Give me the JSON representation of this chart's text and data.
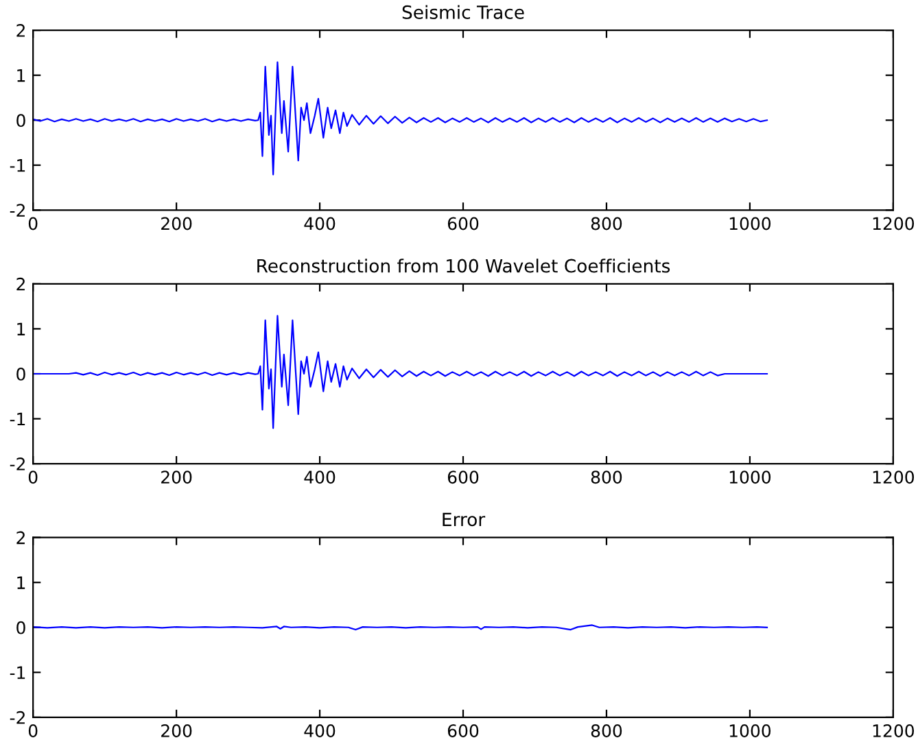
{
  "chart_data": [
    {
      "type": "line",
      "title": "Seismic Trace",
      "xlim": [
        0,
        1200
      ],
      "ylim": [
        -2,
        2
      ],
      "xticks": [
        0,
        200,
        400,
        600,
        800,
        1000,
        1200
      ],
      "yticks": [
        -2,
        -1,
        0,
        1,
        2
      ],
      "grid": false,
      "x": [
        0,
        10,
        20,
        30,
        40,
        50,
        60,
        70,
        80,
        90,
        100,
        110,
        120,
        130,
        140,
        150,
        160,
        170,
        180,
        190,
        200,
        210,
        220,
        230,
        240,
        250,
        260,
        270,
        280,
        290,
        300,
        310,
        314,
        317,
        320,
        324,
        329,
        332,
        335,
        341,
        347,
        350,
        356,
        362,
        370,
        374,
        378,
        382,
        387,
        393,
        398,
        405,
        411,
        416,
        422,
        428,
        433,
        438,
        445,
        455,
        465,
        475,
        485,
        495,
        505,
        515,
        525,
        535,
        545,
        555,
        565,
        575,
        585,
        595,
        605,
        615,
        625,
        635,
        645,
        655,
        665,
        675,
        685,
        695,
        705,
        715,
        725,
        735,
        745,
        755,
        765,
        775,
        785,
        795,
        805,
        815,
        825,
        835,
        845,
        855,
        865,
        875,
        885,
        895,
        905,
        915,
        925,
        935,
        945,
        955,
        965,
        975,
        985,
        995,
        1005,
        1015,
        1024
      ],
      "series": [
        {
          "color": "#0000ff",
          "values": [
            0.02,
            -0.02,
            0.03,
            -0.03,
            0.02,
            -0.02,
            0.03,
            -0.02,
            0.02,
            -0.03,
            0.03,
            -0.02,
            0.02,
            -0.02,
            0.03,
            -0.03,
            0.02,
            -0.02,
            0.02,
            -0.03,
            0.03,
            -0.02,
            0.02,
            -0.02,
            0.03,
            -0.03,
            0.02,
            -0.02,
            0.02,
            -0.02,
            0.02,
            -0.01,
            0,
            0.17,
            -0.8,
            1.19,
            -0.33,
            0.1,
            -1.21,
            1.29,
            -0.29,
            0.43,
            -0.7,
            1.19,
            -0.9,
            0.28,
            0,
            0.38,
            -0.29,
            0.1,
            0.48,
            -0.39,
            0.28,
            -0.18,
            0.22,
            -0.29,
            0.17,
            -0.13,
            0.12,
            -0.1,
            0.1,
            -0.08,
            0.09,
            -0.07,
            0.08,
            -0.06,
            0.06,
            -0.05,
            0.05,
            -0.04,
            0.05,
            -0.05,
            0.04,
            -0.04,
            0.05,
            -0.04,
            0.04,
            -0.05,
            0.05,
            -0.04,
            0.04,
            -0.04,
            0.05,
            -0.05,
            0.04,
            -0.04,
            0.05,
            -0.04,
            0.04,
            -0.05,
            0.05,
            -0.04,
            0.04,
            -0.04,
            0.05,
            -0.05,
            0.04,
            -0.04,
            0.05,
            -0.04,
            0.04,
            -0.05,
            0.04,
            -0.04,
            0.04,
            -0.04,
            0.05,
            -0.04,
            0.04,
            -0.04,
            0.04,
            -0.03,
            0.03,
            -0.03,
            0.03,
            -0.03,
            0
          ]
        }
      ]
    },
    {
      "type": "line",
      "title": "Reconstruction from 100 Wavelet Coefficients",
      "xlim": [
        0,
        1200
      ],
      "ylim": [
        -2,
        2
      ],
      "xticks": [
        0,
        200,
        400,
        600,
        800,
        1000,
        1200
      ],
      "yticks": [
        -2,
        -1,
        0,
        1,
        2
      ],
      "grid": false,
      "x": [
        0,
        10,
        20,
        30,
        40,
        50,
        60,
        70,
        80,
        90,
        100,
        110,
        120,
        130,
        140,
        150,
        160,
        170,
        180,
        190,
        200,
        210,
        220,
        230,
        240,
        250,
        260,
        270,
        280,
        290,
        300,
        310,
        314,
        317,
        320,
        324,
        329,
        332,
        335,
        341,
        347,
        350,
        356,
        362,
        370,
        374,
        378,
        382,
        387,
        393,
        398,
        405,
        411,
        416,
        422,
        428,
        433,
        438,
        445,
        455,
        465,
        475,
        485,
        495,
        505,
        515,
        525,
        535,
        545,
        555,
        565,
        575,
        585,
        595,
        605,
        615,
        625,
        635,
        645,
        655,
        665,
        675,
        685,
        695,
        705,
        715,
        725,
        735,
        745,
        755,
        765,
        775,
        785,
        795,
        805,
        815,
        825,
        835,
        845,
        855,
        865,
        875,
        885,
        895,
        905,
        915,
        925,
        935,
        945,
        955,
        965,
        975,
        985,
        995,
        1005,
        1015,
        1024
      ],
      "series": [
        {
          "color": "#0000ff",
          "values": [
            0,
            0,
            0,
            0,
            0,
            0,
            0.02,
            -0.02,
            0.02,
            -0.03,
            0.03,
            -0.02,
            0.02,
            -0.02,
            0.03,
            -0.03,
            0.02,
            -0.02,
            0.02,
            -0.03,
            0.03,
            -0.02,
            0.02,
            -0.02,
            0.03,
            -0.03,
            0.02,
            -0.02,
            0.02,
            -0.02,
            0.02,
            -0.01,
            0,
            0.17,
            -0.8,
            1.19,
            -0.33,
            0.1,
            -1.21,
            1.29,
            -0.29,
            0.43,
            -0.7,
            1.19,
            -0.9,
            0.28,
            0,
            0.38,
            -0.29,
            0.1,
            0.48,
            -0.39,
            0.28,
            -0.18,
            0.22,
            -0.29,
            0.17,
            -0.13,
            0.12,
            -0.1,
            0.1,
            -0.08,
            0.09,
            -0.07,
            0.08,
            -0.06,
            0.06,
            -0.05,
            0.05,
            -0.04,
            0.05,
            -0.05,
            0.04,
            -0.04,
            0.05,
            -0.04,
            0.04,
            -0.05,
            0.05,
            -0.04,
            0.04,
            -0.04,
            0.05,
            -0.05,
            0.04,
            -0.04,
            0.05,
            -0.04,
            0.04,
            -0.05,
            0.05,
            -0.04,
            0.04,
            -0.04,
            0.05,
            -0.05,
            0.04,
            -0.04,
            0.05,
            -0.04,
            0.04,
            -0.05,
            0.04,
            -0.04,
            0.04,
            -0.04,
            0.05,
            -0.04,
            0.04,
            -0.04,
            0,
            0,
            0,
            0,
            0,
            0,
            0
          ]
        }
      ]
    },
    {
      "type": "line",
      "title": "Error",
      "xlim": [
        0,
        1200
      ],
      "ylim": [
        -2,
        2
      ],
      "xticks": [
        0,
        200,
        400,
        600,
        800,
        1000,
        1200
      ],
      "yticks": [
        -2,
        -1,
        0,
        1,
        2
      ],
      "grid": false,
      "x": [
        0,
        20,
        40,
        60,
        80,
        100,
        120,
        140,
        160,
        180,
        200,
        220,
        240,
        260,
        280,
        300,
        320,
        340,
        345,
        350,
        360,
        380,
        400,
        420,
        440,
        450,
        460,
        480,
        500,
        520,
        540,
        560,
        580,
        600,
        620,
        625,
        630,
        650,
        670,
        690,
        710,
        730,
        750,
        760,
        780,
        790,
        810,
        830,
        850,
        870,
        890,
        910,
        930,
        950,
        970,
        990,
        1010,
        1024
      ],
      "series": [
        {
          "color": "#0000ff",
          "values": [
            0.01,
            -0.01,
            0.01,
            -0.01,
            0.01,
            -0.01,
            0.01,
            0,
            0.01,
            -0.01,
            0.01,
            0,
            0.01,
            0,
            0.01,
            0,
            -0.01,
            0.02,
            -0.03,
            0.02,
            0,
            0.01,
            -0.01,
            0.01,
            0,
            -0.05,
            0.01,
            0,
            0.01,
            -0.01,
            0.01,
            0,
            0.01,
            0,
            0.01,
            -0.04,
            0.01,
            0,
            0.01,
            -0.01,
            0.01,
            0,
            -0.05,
            0.01,
            0.05,
            0,
            0.01,
            -0.01,
            0.01,
            0,
            0.01,
            -0.01,
            0.01,
            0,
            0.01,
            0,
            0.01,
            0
          ]
        }
      ]
    }
  ]
}
